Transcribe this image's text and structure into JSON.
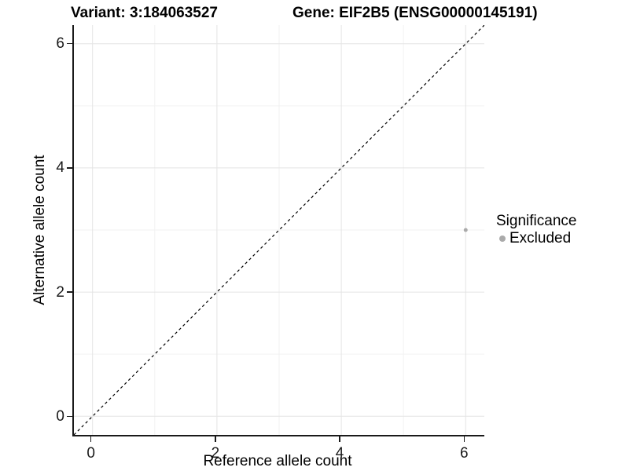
{
  "titles": {
    "variant": "Variant: 3:184063527",
    "gene": "Gene: EIF2B5 (ENSG00000145191)"
  },
  "chart_data": {
    "type": "scatter",
    "title_left": "Variant: 3:184063527",
    "title_right": "Gene: EIF2B5 (ENSG00000145191)",
    "xlabel": "Reference allele count",
    "ylabel": "Alternative allele count",
    "xlim": [
      -0.3,
      6.3
    ],
    "ylim": [
      -0.3,
      6.3
    ],
    "x_ticks": [
      0,
      2,
      4,
      6
    ],
    "y_ticks": [
      0,
      2,
      4,
      6
    ],
    "x_minor": [
      1,
      3,
      5
    ],
    "y_minor": [
      1,
      3,
      5
    ],
    "grid": true,
    "identity_line": {
      "style": "dashed",
      "from": [
        -0.3,
        -0.3
      ],
      "to": [
        6.3,
        6.3
      ],
      "color": "#000000"
    },
    "points": [
      {
        "x": 6,
        "y": 3,
        "series": "Excluded",
        "color": "#aaaaaa",
        "radius": 2.5
      }
    ],
    "legend": {
      "position": "right",
      "title": "Significance",
      "items": [
        {
          "label": "Excluded",
          "color": "#aaaaaa"
        }
      ]
    },
    "colors": {
      "grid_major": "#e4e4e4",
      "grid_minor": "#f2f2f2",
      "axis_line": "#1a1a1a",
      "point": "#aaaaaa",
      "text": "#000000"
    }
  }
}
